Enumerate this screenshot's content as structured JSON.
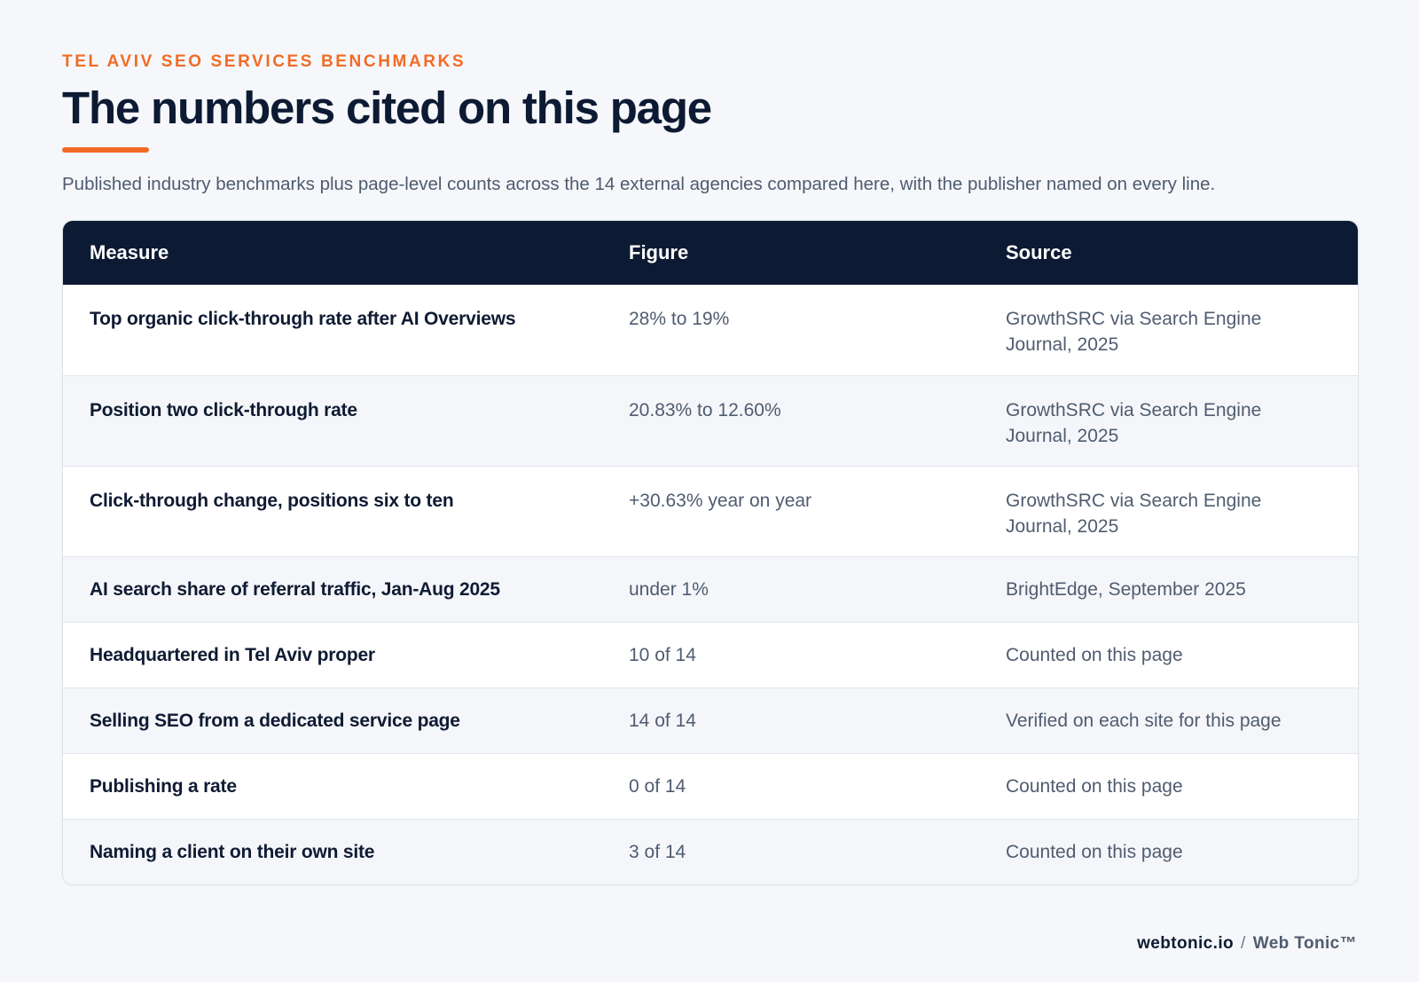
{
  "header": {
    "eyebrow": "TEL AVIV SEO SERVICES BENCHMARKS",
    "title": "The numbers cited on this page",
    "subtitle": "Published industry benchmarks plus page-level counts across the 14 external agencies compared here, with the publisher named on every line."
  },
  "table": {
    "columns": [
      "Measure",
      "Figure",
      "Source"
    ],
    "rows": [
      {
        "measure": "Top organic click-through rate after AI Overviews",
        "figure": "28% to 19%",
        "source": "GrowthSRC via Search Engine Journal, 2025"
      },
      {
        "measure": "Position two click-through rate",
        "figure": "20.83% to 12.60%",
        "source": "GrowthSRC via Search Engine Journal, 2025"
      },
      {
        "measure": "Click-through change, positions six to ten",
        "figure": "+30.63% year on year",
        "source": "GrowthSRC via Search Engine Journal, 2025"
      },
      {
        "measure": "AI search share of referral traffic, Jan-Aug 2025",
        "figure": "under 1%",
        "source": "BrightEdge, September 2025"
      },
      {
        "measure": "Headquartered in Tel Aviv proper",
        "figure": "10 of 14",
        "source": "Counted on this page"
      },
      {
        "measure": "Selling SEO from a dedicated service page",
        "figure": "14 of 14",
        "source": "Verified on each site for this page"
      },
      {
        "measure": "Publishing a rate",
        "figure": "0 of 14",
        "source": "Counted on this page"
      },
      {
        "measure": "Naming a client on their own site",
        "figure": "3 of 14",
        "source": "Counted on this page"
      }
    ]
  },
  "footer": {
    "domain": "webtonic.io",
    "separator": "/",
    "brand": "Web Tonic™"
  },
  "colors": {
    "accent": "#f26b26",
    "header_bg": "#0c1a33",
    "page_bg": "#f5f7fa"
  }
}
